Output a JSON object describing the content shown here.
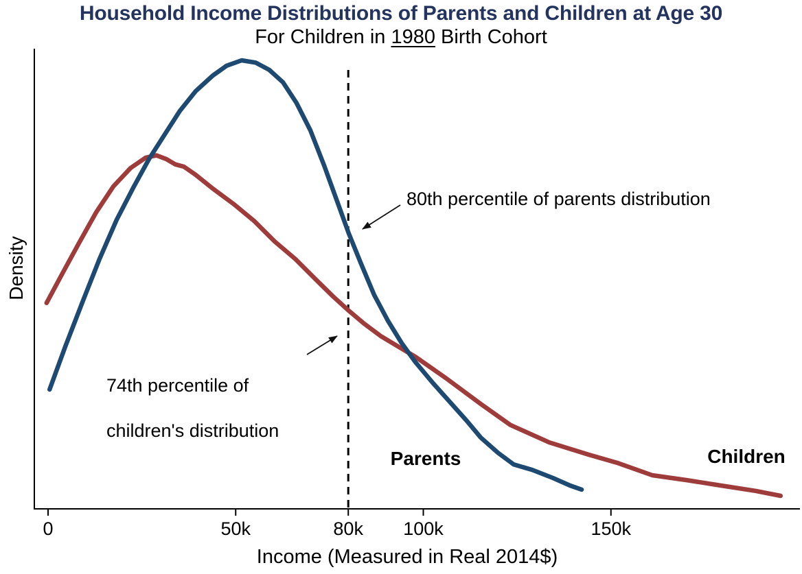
{
  "chart_data": {
    "type": "line",
    "subtype": "kernel-density",
    "title": "Household Income Distributions of Parents and Children at Age 30",
    "subtitle": {
      "prefix": "For Children in ",
      "year": "1980",
      "suffix": " Birth Cohort"
    },
    "xlabel": "Income (Measured in Real 2014$)",
    "ylabel": "Density",
    "grid": false,
    "legend_position": "inline-text-labels",
    "x_unit": "thousands of real 2014 dollars",
    "xlim": [
      -4,
      200
    ],
    "ylim": [
      0,
      1.05
    ],
    "y_axis_tick_labels": "none (unlabeled density axis)",
    "x_ticks": [
      {
        "value": 0,
        "label": "0"
      },
      {
        "value": 50,
        "label": "50k"
      },
      {
        "value": 80,
        "label": "80k"
      },
      {
        "value": 100,
        "label": "100k"
      },
      {
        "value": 150,
        "label": "150k"
      }
    ],
    "reference_line": {
      "x": 80,
      "style": "dashed",
      "color": "#000000"
    },
    "annotations": {
      "parents_percentile": "80th percentile of parents distribution",
      "children_percentile_line1": "74th percentile of",
      "children_percentile_line2": "children's distribution",
      "parents_label": "Parents",
      "children_label": "Children"
    },
    "colors": {
      "title_navy": "#24345F",
      "parents_blue": "#1E4A72",
      "children_red": "#9E3B3B",
      "axis": "#000000"
    },
    "series": [
      {
        "name": "Parents",
        "color": "#1E4A72",
        "points": [
          [
            0.4,
            0.266
          ],
          [
            4.6,
            0.362
          ],
          [
            9.2,
            0.462
          ],
          [
            13.7,
            0.557
          ],
          [
            18.3,
            0.645
          ],
          [
            22.9,
            0.719
          ],
          [
            26.9,
            0.78
          ],
          [
            31.1,
            0.835
          ],
          [
            35.1,
            0.887
          ],
          [
            39.3,
            0.931
          ],
          [
            43.9,
            0.966
          ],
          [
            47.6,
            0.988
          ],
          [
            51.6,
            1.0
          ],
          [
            55.3,
            0.995
          ],
          [
            58.9,
            0.979
          ],
          [
            62.6,
            0.951
          ],
          [
            66.2,
            0.905
          ],
          [
            69.9,
            0.844
          ],
          [
            73.6,
            0.765
          ],
          [
            77.8,
            0.668
          ],
          [
            80.1,
            0.615
          ],
          [
            83.3,
            0.549
          ],
          [
            86.9,
            0.477
          ],
          [
            90.6,
            0.419
          ],
          [
            94.2,
            0.37
          ],
          [
            97.9,
            0.327
          ],
          [
            102.5,
            0.281
          ],
          [
            107.0,
            0.239
          ],
          [
            111.6,
            0.196
          ],
          [
            115.3,
            0.159
          ],
          [
            119.9,
            0.125
          ],
          [
            124.1,
            0.099
          ],
          [
            129.0,
            0.087
          ],
          [
            134.5,
            0.069
          ],
          [
            139.1,
            0.052
          ],
          [
            142.2,
            0.043
          ]
        ]
      },
      {
        "name": "Children",
        "color": "#9E3B3B",
        "points": [
          [
            -0.4,
            0.459
          ],
          [
            3.7,
            0.523
          ],
          [
            8.2,
            0.592
          ],
          [
            12.8,
            0.661
          ],
          [
            17.4,
            0.719
          ],
          [
            22.0,
            0.76
          ],
          [
            26.0,
            0.783
          ],
          [
            28.9,
            0.788
          ],
          [
            31.5,
            0.78
          ],
          [
            33.9,
            0.768
          ],
          [
            36.2,
            0.763
          ],
          [
            39.3,
            0.745
          ],
          [
            43.9,
            0.714
          ],
          [
            49.4,
            0.68
          ],
          [
            54.9,
            0.642
          ],
          [
            60.4,
            0.596
          ],
          [
            65.9,
            0.557
          ],
          [
            71.4,
            0.511
          ],
          [
            75.9,
            0.474
          ],
          [
            80.1,
            0.442
          ],
          [
            84.2,
            0.413
          ],
          [
            88.7,
            0.385
          ],
          [
            93.3,
            0.362
          ],
          [
            97.9,
            0.339
          ],
          [
            106.1,
            0.291
          ],
          [
            115.3,
            0.234
          ],
          [
            123.2,
            0.187
          ],
          [
            133.6,
            0.148
          ],
          [
            144.0,
            0.121
          ],
          [
            151.9,
            0.102
          ],
          [
            161.0,
            0.075
          ],
          [
            170.2,
            0.064
          ],
          [
            179.3,
            0.052
          ],
          [
            188.5,
            0.04
          ],
          [
            195.2,
            0.029
          ]
        ]
      }
    ]
  }
}
